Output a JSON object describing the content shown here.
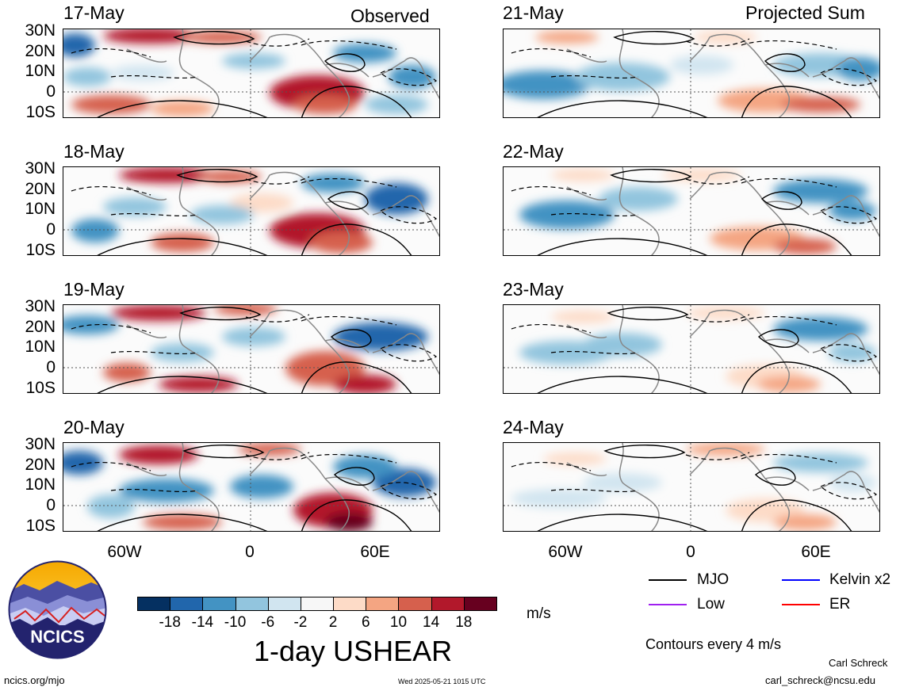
{
  "panels": {
    "observed_title": "Observed",
    "projected_title": "Projected Sum",
    "observed_dates": [
      "17-May",
      "18-May",
      "19-May",
      "20-May"
    ],
    "projected_dates": [
      "21-May",
      "22-May",
      "23-May",
      "24-May"
    ],
    "lat_labels": [
      "30N",
      "20N",
      "10N",
      "0",
      "10S"
    ],
    "lon_labels": [
      "60W",
      "0",
      "60E"
    ]
  },
  "colorbar": {
    "colors": [
      "#053061",
      "#2166ac",
      "#4393c3",
      "#92c5de",
      "#d1e5f0",
      "#f7f7f7",
      "#fddbc7",
      "#f4a582",
      "#d6604d",
      "#b2182b",
      "#67001f"
    ],
    "labels": [
      "-18",
      "-14",
      "-10",
      "-6",
      "-2",
      "2",
      "6",
      "10",
      "14",
      "18"
    ],
    "units": "m/s"
  },
  "title": "1-day USHEAR",
  "legend": {
    "items": [
      {
        "label": "MJO",
        "color": "#000000"
      },
      {
        "label": "Kelvin x2",
        "color": "#0000ff"
      },
      {
        "label": "Low",
        "color": "#a020f0"
      },
      {
        "label": "ER",
        "color": "#ff0000"
      }
    ],
    "contour_note": "Contours every 4 m/s"
  },
  "footer": {
    "logo_text": "NCICS",
    "site": "ncics.org/mjo",
    "timestamp": "Wed 2025-05-21 1015 UTC",
    "author": "Carl Schreck",
    "email": "carl_schreck@ncsu.edu"
  }
}
